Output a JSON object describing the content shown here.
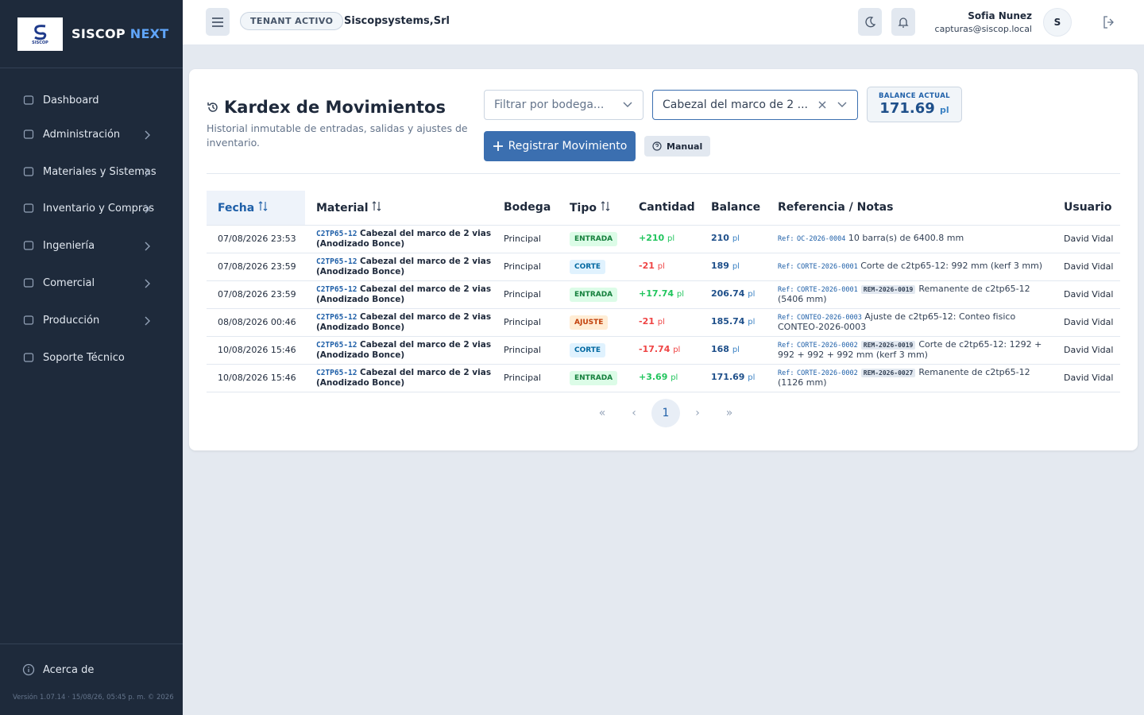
{
  "brand": {
    "logo_text": "SISCOP",
    "name": "SISCOP",
    "accent": "NEXT"
  },
  "sidebar": {
    "items": [
      {
        "label": "Dashboard",
        "expandable": false
      },
      {
        "label": "Administración",
        "expandable": true
      },
      {
        "label": "Materiales y Sistemas",
        "expandable": true
      },
      {
        "label": "Inventario y Compras",
        "expandable": true
      },
      {
        "label": "Ingeniería",
        "expandable": true
      },
      {
        "label": "Comercial",
        "expandable": true
      },
      {
        "label": "Producción",
        "expandable": true
      },
      {
        "label": "Soporte Técnico",
        "expandable": false
      }
    ],
    "about": "Acerca de",
    "version": "Versión 1.07.14 · 15/08/26, 05:45 p. m. © 2026"
  },
  "topbar": {
    "tenant_badge": "TENANT ACTIVO",
    "tenant": "Siscopsystems,Srl",
    "user": {
      "name": "Sofia Nunez",
      "email": "capturas@siscop.local",
      "initial": "S"
    }
  },
  "page": {
    "title": "Kardex de Movimientos",
    "subtitle": "Historial inmutable de entradas, salidas y ajustes de inventario.",
    "filter_placeholder": "Filtrar por bodega...",
    "material_select": "Cabezal del marco de 2 ...",
    "balance": {
      "label": "BALANCE ACTUAL",
      "value": "171.69",
      "unit": "pl"
    },
    "register_button": "Registrar Movimiento",
    "manual_button": "Manual"
  },
  "table": {
    "headers": [
      "Fecha",
      "Material",
      "Bodega",
      "Tipo",
      "Cantidad",
      "Balance",
      "Referencia / Notas",
      "Usuario"
    ],
    "unit": "pl",
    "ref_prefix": "Ref:",
    "rows": [
      {
        "fecha": "07/08/2026 23:53",
        "code": "C2TP65-12",
        "material": "Cabezal del marco de 2 vias (Anodizado Bonce)",
        "bodega": "Principal",
        "tipo": "ENTRADA",
        "cantidad": "+210",
        "balance": "210",
        "ref": "OC-2026-0004",
        "tag": null,
        "notes": "10 barra(s) de 6400.8 mm",
        "usuario": "David Vidal"
      },
      {
        "fecha": "07/08/2026 23:59",
        "code": "C2TP65-12",
        "material": "Cabezal del marco de 2 vias (Anodizado Bonce)",
        "bodega": "Principal",
        "tipo": "CORTE",
        "cantidad": "-21",
        "balance": "189",
        "ref": "CORTE-2026-0001",
        "tag": null,
        "notes": "Corte de c2tp65-12: 992 mm (kerf 3 mm)",
        "usuario": "David Vidal"
      },
      {
        "fecha": "07/08/2026 23:59",
        "code": "C2TP65-12",
        "material": "Cabezal del marco de 2 vias (Anodizado Bonce)",
        "bodega": "Principal",
        "tipo": "ENTRADA",
        "cantidad": "+17.74",
        "balance": "206.74",
        "ref": "CORTE-2026-0001",
        "tag": "REM-2026-0019",
        "notes": "Remanente de c2tp65-12 (5406 mm)",
        "usuario": "David Vidal"
      },
      {
        "fecha": "08/08/2026 00:46",
        "code": "C2TP65-12",
        "material": "Cabezal del marco de 2 vias (Anodizado Bonce)",
        "bodega": "Principal",
        "tipo": "AJUSTE",
        "cantidad": "-21",
        "balance": "185.74",
        "ref": "CONTEO-2026-0003",
        "tag": null,
        "notes": "Ajuste de c2tp65-12: Conteo fisico CONTEO-2026-0003",
        "usuario": "David Vidal"
      },
      {
        "fecha": "10/08/2026 15:46",
        "code": "C2TP65-12",
        "material": "Cabezal del marco de 2 vias (Anodizado Bonce)",
        "bodega": "Principal",
        "tipo": "CORTE",
        "cantidad": "-17.74",
        "balance": "168",
        "ref": "CORTE-2026-0002",
        "tag": "REM-2026-0019",
        "notes": "Corte de c2tp65-12: 1292 + 992 + 992 + 992 mm (kerf 3 mm)",
        "usuario": "David Vidal"
      },
      {
        "fecha": "10/08/2026 15:46",
        "code": "C2TP65-12",
        "material": "Cabezal del marco de 2 vias (Anodizado Bonce)",
        "bodega": "Principal",
        "tipo": "ENTRADA",
        "cantidad": "+3.69",
        "balance": "171.69",
        "ref": "CORTE-2026-0002",
        "tag": "REM-2026-0027",
        "notes": "Remanente de c2tp65-12 (1126 mm)",
        "usuario": "David Vidal"
      }
    ]
  },
  "pagination": {
    "current": "1"
  }
}
